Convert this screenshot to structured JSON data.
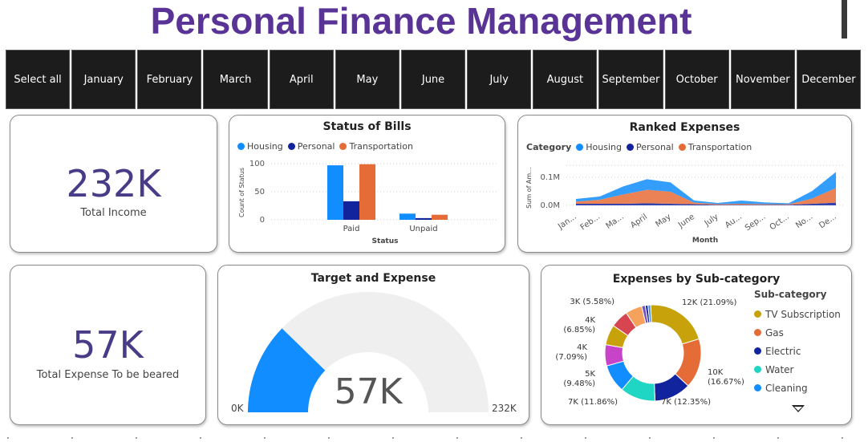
{
  "header": {
    "title": "Personal Finance Management"
  },
  "slicer": {
    "items": [
      "Select all",
      "January",
      "February",
      "March",
      "April",
      "May",
      "June",
      "July",
      "August",
      "September",
      "October",
      "November",
      "December"
    ]
  },
  "kpi_income": {
    "value": "232K",
    "label": "Total Income"
  },
  "kpi_expense": {
    "value": "57K",
    "label": "Total Expense To be beared"
  },
  "colors": {
    "housing": "#118dff",
    "personal": "#12239e",
    "transportation": "#e66c37",
    "gauge_fill": "#118dff",
    "gauge_track": "#f0efef",
    "title_purple": "#5a3397"
  },
  "status_of_bills": {
    "title": "Status of Bills",
    "legend": [
      "Housing",
      "Personal",
      "Transportation"
    ],
    "y_axis_label": "Count of Status",
    "x_axis_label": "Status",
    "y_ticks": [
      "100",
      "50",
      "0"
    ]
  },
  "ranked_expenses": {
    "title": "Ranked Expenses",
    "legend_title": "Category",
    "legend": [
      "Housing",
      "Personal",
      "Transportation"
    ],
    "y_axis_label": "Sum of Am...",
    "x_axis_label": "Month",
    "y_ticks": [
      "0.1M",
      "0.0M"
    ],
    "x_ticks": [
      "Jan...",
      "Feb...",
      "Ma...",
      "April",
      "May",
      "June",
      "July",
      "Au...",
      "Sep...",
      "Oct...",
      "No...",
      "De..."
    ]
  },
  "target_expense": {
    "title": "Target and Expense",
    "value_label": "57K",
    "min_label": "0K",
    "max_label": "232K",
    "min": 0,
    "max": 232,
    "value": 57
  },
  "subcategory": {
    "title": "Expenses by Sub-category",
    "legend_title": "Sub-category",
    "legend": [
      {
        "name": "TV Subscription",
        "color": "#c7a20a"
      },
      {
        "name": "Gas",
        "color": "#e66c37"
      },
      {
        "name": "Electric",
        "color": "#12239e"
      },
      {
        "name": "Water",
        "color": "#1fd6c4"
      },
      {
        "name": "Cleaning",
        "color": "#118dff"
      }
    ]
  },
  "chart_data": [
    {
      "type": "bar",
      "title": "Status of Bills",
      "xlabel": "Status",
      "ylabel": "Count of Status",
      "categories": [
        "Paid",
        "Unpaid"
      ],
      "ylim": [
        0,
        110
      ],
      "series": [
        {
          "name": "Housing",
          "values": [
            97,
            11
          ]
        },
        {
          "name": "Personal",
          "values": [
            33,
            3
          ]
        },
        {
          "name": "Transportation",
          "values": [
            99,
            9
          ]
        }
      ]
    },
    {
      "type": "area",
      "title": "Ranked Expenses",
      "xlabel": "Month",
      "ylabel": "Sum of Am...",
      "categories": [
        "January",
        "February",
        "March",
        "April",
        "May",
        "June",
        "July",
        "August",
        "September",
        "October",
        "November",
        "December"
      ],
      "ylim": [
        0,
        0.15
      ],
      "series": [
        {
          "name": "Housing",
          "values": [
            0.01,
            0.012,
            0.03,
            0.04,
            0.035,
            0.008,
            0.004,
            0.012,
            0.006,
            0.004,
            0.028,
            0.06
          ]
        },
        {
          "name": "Personal",
          "values": [
            0.006,
            0.006,
            0.006,
            0.008,
            0.006,
            0.004,
            0.002,
            0.002,
            0.002,
            0.002,
            0.006,
            0.01
          ]
        },
        {
          "name": "Transportation",
          "values": [
            0.008,
            0.015,
            0.035,
            0.05,
            0.045,
            0.006,
            0.003,
            0.004,
            0.003,
            0.002,
            0.02,
            0.055
          ]
        }
      ]
    },
    {
      "type": "pie",
      "title": "Expenses by Sub-category",
      "slices": [
        {
          "name": "TV Subscription",
          "value": 12,
          "label": "12K (21.09%)",
          "percent": 21.09,
          "color": "#c7a20a"
        },
        {
          "name": "Gas",
          "value": 10,
          "label": "10K (16.67%)",
          "percent": 16.67,
          "color": "#e66c37"
        },
        {
          "name": "Electric",
          "value": 7,
          "label": "7K (12.35%)",
          "percent": 12.35,
          "color": "#12239e"
        },
        {
          "name": "Water",
          "value": 7,
          "label": "7K (11.86%)",
          "percent": 11.86,
          "color": "#1fd6c4"
        },
        {
          "name": "Cleaning",
          "value": 5,
          "label": "5K (9.48%)",
          "percent": 9.48,
          "color": "#118dff"
        },
        {
          "name": "",
          "value": 4,
          "label": "4K (7.09%)",
          "percent": 7.09,
          "color": "#c744c8"
        },
        {
          "name": "",
          "value": 4,
          "label": "4K (6.85%)",
          "percent": 6.85,
          "color": "#c7a20a"
        },
        {
          "name": "",
          "value": 4,
          "label": "",
          "percent": 6.0,
          "color": "#d64550"
        },
        {
          "name": "",
          "value": 3,
          "label": "3K (5.58%)",
          "percent": 5.58,
          "color": "#f5a25d"
        },
        {
          "name": "",
          "value": 1,
          "label": "",
          "percent": 1.2,
          "color": "#744ec2"
        },
        {
          "name": "",
          "value": 1,
          "label": "",
          "percent": 0.9,
          "color": "#12239e"
        },
        {
          "name": "",
          "value": 1,
          "label": "",
          "percent": 0.9,
          "color": "#4a8ed8"
        }
      ]
    }
  ]
}
